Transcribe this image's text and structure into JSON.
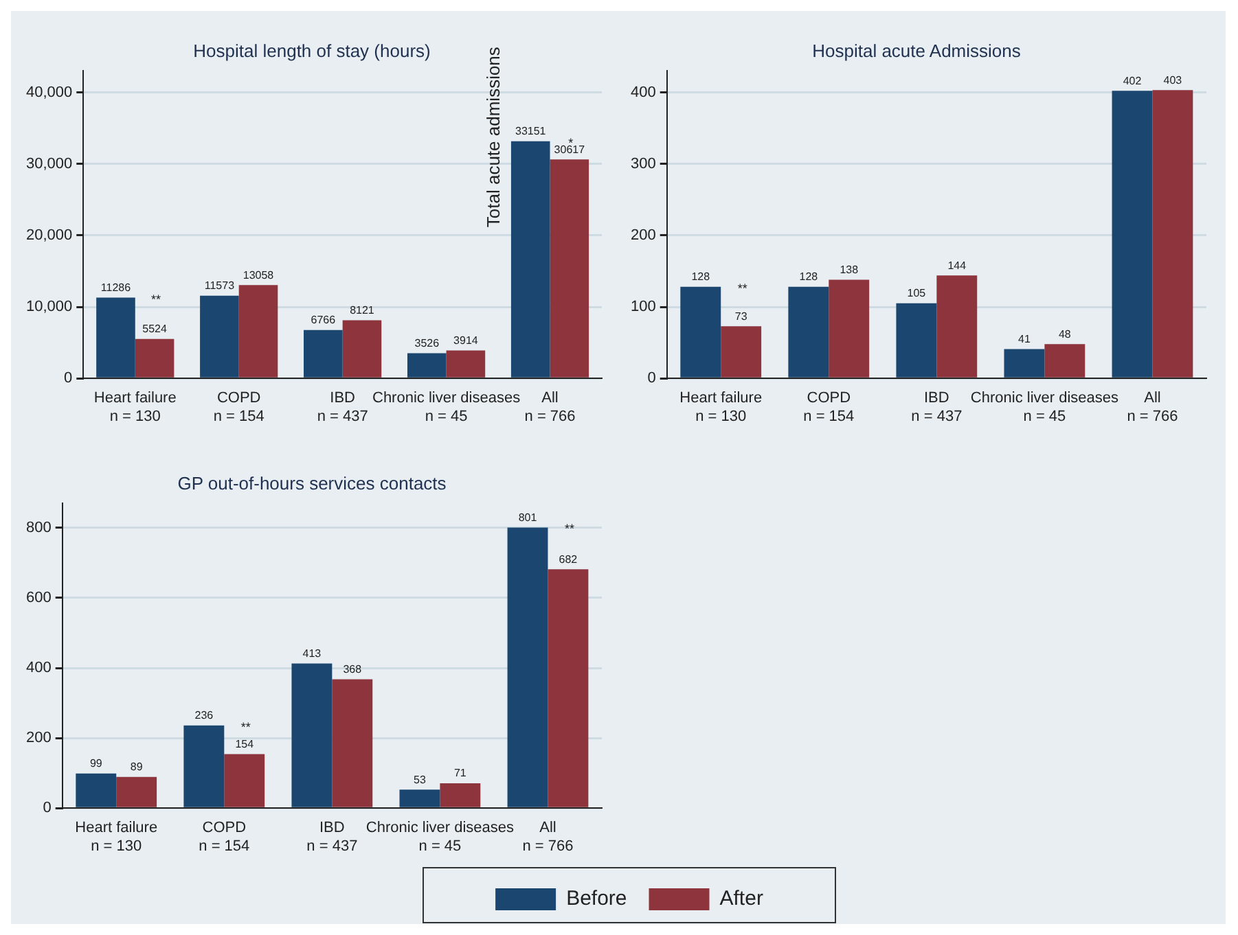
{
  "chart_data": [
    {
      "type": "bar",
      "title": "Hospital length of stay (hours)",
      "categories": [
        "Heart failure\nn = 130",
        "COPD\nn = 154",
        "IBD\nn = 437",
        "Chronic liver diseases\nn = 45",
        "All\nn = 766"
      ],
      "series": [
        {
          "color": "#1a4670",
          "values": [
            11286,
            11573,
            6766,
            3526,
            33151
          ]
        },
        {
          "color": "#8e343c",
          "values": [
            5524,
            13058,
            8121,
            3914,
            30617
          ]
        }
      ],
      "ylim": [
        0,
        43000
      ],
      "yticks": [
        0,
        {
          "value": 10000,
          "label": "10,000"
        },
        {
          "value": 20000,
          "label": "20,000"
        },
        {
          "value": 30000,
          "label": "30,000"
        },
        {
          "value": 40000,
          "label": "40,000"
        }
      ],
      "grid": "y",
      "data_labels": true,
      "legend": false,
      "annotations": [
        {
          "text": "**",
          "x": "Heart failure\nn = 130",
          "y": 11286
        },
        {
          "text": "*",
          "x": "All\nn = 766",
          "y": 33151
        },
        "Total acute admissions"
      ]
    },
    {
      "type": "bar",
      "title": "Hospital acute Admissions",
      "categories": [
        "Heart failure\nn = 130",
        "COPD\nn = 154",
        "IBD\nn = 437",
        "Chronic liver diseases\nn = 45",
        "All\nn = 766"
      ],
      "series": [
        {
          "color": "#1a4670",
          "values": [
            128,
            128,
            105,
            41,
            402
          ]
        },
        {
          "color": "#8e343c",
          "values": [
            73,
            138,
            144,
            48,
            403
          ]
        }
      ],
      "ylim": [
        0,
        430
      ],
      "yticks": [
        0,
        100,
        200,
        300,
        400
      ],
      "grid": "y",
      "data_labels": true,
      "legend": false,
      "annotations": [
        {
          "text": "**",
          "x": "Heart failure\nn = 130",
          "y": 128
        }
      ]
    },
    {
      "type": "bar",
      "title": "GP out-of-hours services contacts",
      "categories": [
        "Heart failure\nn = 130",
        "COPD\nn = 154",
        "IBD\nn = 437",
        "Chronic liver diseases\nn = 45",
        "All\nn = 766"
      ],
      "series": [
        {
          "name": "Before",
          "color": "#1a4670",
          "values": [
            99,
            236,
            413,
            53,
            801
          ]
        },
        {
          "name": "After",
          "color": "#8e343c",
          "values": [
            89,
            154,
            368,
            71,
            682
          ]
        }
      ],
      "ylim": [
        0,
        870
      ],
      "yticks": [
        0,
        200,
        400,
        600,
        800
      ],
      "grid": "y",
      "data_labels": true,
      "legend": "bottom",
      "annotations": [
        {
          "text": "**",
          "x": "COPD\nn = 154",
          "y": 236
        },
        {
          "text": "**",
          "x": "All\nn = 766",
          "y": 801
        }
      ]
    }
  ]
}
